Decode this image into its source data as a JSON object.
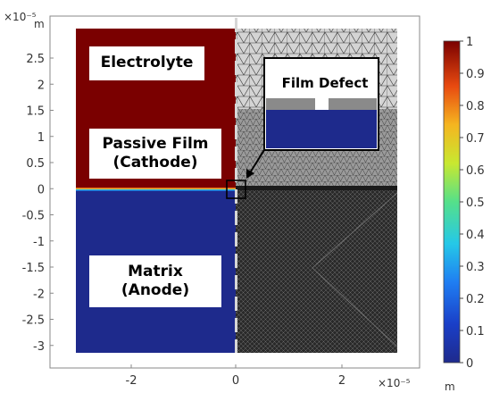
{
  "axes": {
    "y_exponent": "×10⁻⁵",
    "y_unit": "m",
    "x_exponent": "×10⁻⁵",
    "x_unit": "m",
    "y_ticks": [
      "2.5",
      "2",
      "1.5",
      "1",
      "0.5",
      "0",
      "-0.5",
      "-1",
      "-1.5",
      "-2",
      "-2.5",
      "-3"
    ],
    "x_ticks": [
      "-2",
      "0",
      "2"
    ]
  },
  "regions": {
    "electrolyte": "Electrolyte",
    "passive_film_line1": "Passive Film",
    "passive_film_line2": "(Cathode)",
    "matrix_line1": "Matrix",
    "matrix_line2": "(Anode)"
  },
  "inset": {
    "title": "Film Defect"
  },
  "colorbar": {
    "ticks": [
      "1",
      "0.9",
      "0.8",
      "0.7",
      "0.6",
      "0.5",
      "0.4",
      "0.3",
      "0.2",
      "0.1",
      "0"
    ],
    "colors": {
      "high": "#7a0000",
      "low": "#1e2a8c"
    }
  }
}
